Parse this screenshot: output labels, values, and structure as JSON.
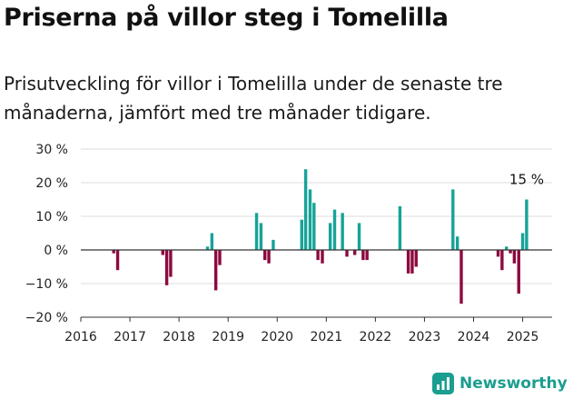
{
  "title": "Priserna på villor steg i Tomelilla",
  "subtitle": "Prisutveckling för villor i Tomelilla under de senaste tre månaderna, jämfört med tre månader tidigare.",
  "brand": {
    "name": "Newsworthy",
    "icon": "newsworthy-logo-icon"
  },
  "colors": {
    "positive": "#17a398",
    "negative": "#8c0a3f",
    "grid": "#dddddd",
    "axis": "#333333"
  },
  "chart_data": {
    "type": "bar",
    "ylim": [
      -20,
      30
    ],
    "yticks": [
      -20,
      -10,
      0,
      10,
      20,
      30
    ],
    "ytick_labels": [
      "−20 %",
      "−10 %",
      "0 %",
      "10 %",
      "20 %",
      "30 %"
    ],
    "xlim": [
      2016,
      2025.6
    ],
    "xticks": [
      2016,
      2017,
      2018,
      2019,
      2020,
      2021,
      2022,
      2023,
      2024,
      2025
    ],
    "xtick_labels": [
      "2016",
      "2017",
      "2018",
      "2019",
      "2020",
      "2021",
      "2022",
      "2023",
      "2024",
      "2025"
    ],
    "grid": true,
    "annotation": {
      "text": "15 %",
      "x": 2025.1,
      "value": 15
    },
    "x": [
      2016.67,
      2016.75,
      2017.67,
      2017.75,
      2017.83,
      2018.58,
      2018.67,
      2018.75,
      2018.83,
      2019.58,
      2019.67,
      2019.75,
      2019.83,
      2019.92,
      2020.5,
      2020.58,
      2020.67,
      2020.75,
      2020.83,
      2020.92,
      2021.08,
      2021.17,
      2021.33,
      2021.42,
      2021.58,
      2021.67,
      2021.75,
      2021.83,
      2022.5,
      2022.67,
      2022.75,
      2022.83,
      2023.58,
      2023.67,
      2023.75,
      2024.5,
      2024.58,
      2024.67,
      2024.75,
      2024.83,
      2024.92,
      2025.0,
      2025.08
    ],
    "values": [
      -1,
      -6,
      -1.5,
      -10.5,
      -8,
      1,
      5,
      -12,
      -4.5,
      11,
      8,
      -3,
      -4,
      3,
      9,
      24,
      18,
      14,
      -3,
      -4,
      8,
      12,
      11,
      -2,
      -1.5,
      8,
      -3,
      -3,
      13,
      -7,
      -7,
      -5,
      18,
      4,
      -16,
      -2,
      -6,
      1,
      -1,
      -4,
      -13,
      5,
      15
    ]
  }
}
